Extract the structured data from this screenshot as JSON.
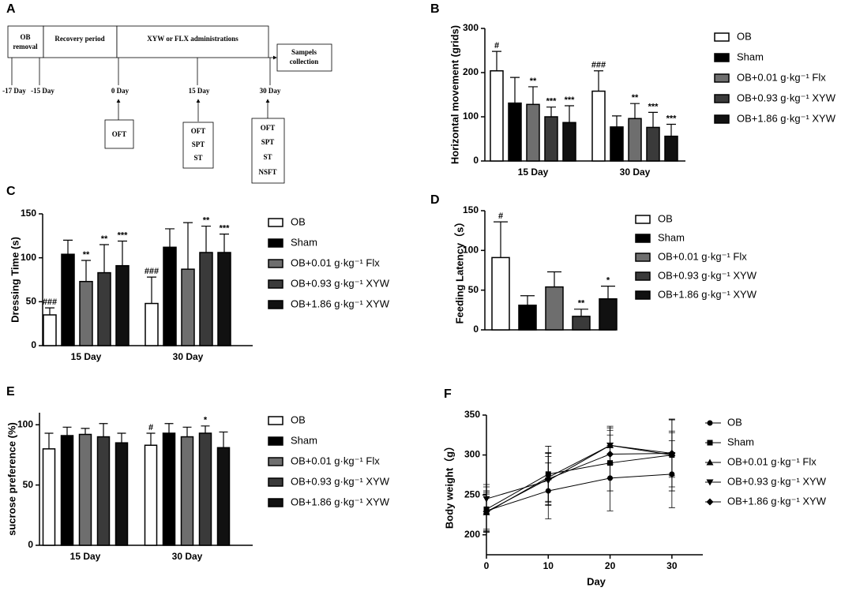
{
  "timeline": {
    "panel": "A",
    "phases": [
      [
        "OB",
        "removal"
      ],
      [
        "Recovery period"
      ],
      [
        "XYW or FLX administrations"
      ],
      [
        "Sampels",
        "collection"
      ]
    ],
    "days": [
      "-17 Day",
      "-15 Day",
      "0 Day",
      "15 Day",
      "30 Day"
    ],
    "tests": [
      [
        "OFT"
      ],
      [
        "OFT",
        "SPT",
        "ST"
      ],
      [
        "OFT",
        "SPT",
        "ST",
        "NSFT"
      ]
    ]
  },
  "chart_data": [
    {
      "panel": "B",
      "type": "bar",
      "y_label": "Horizontal movement (grids)",
      "categories": [
        "15 Day",
        "30 Day"
      ],
      "ylim": [
        0,
        300
      ],
      "yticks": [
        0,
        100,
        200,
        300
      ],
      "series": [
        {
          "name": "OB",
          "color": "#ffffff",
          "values": [
            204,
            158
          ],
          "errors": [
            44,
            46
          ],
          "annotations": [
            "#",
            "###"
          ]
        },
        {
          "name": "Sham",
          "color": "#000000",
          "values": [
            131,
            77
          ],
          "errors": [
            58,
            25
          ],
          "annotations": [
            null,
            null
          ]
        },
        {
          "name": "OB+0.01 g·kg⁻¹ Flx",
          "color": "#6e6e6e",
          "values": [
            128,
            96
          ],
          "errors": [
            40,
            34
          ],
          "annotations": [
            "**",
            "**"
          ]
        },
        {
          "name": "OB+0.93 g·kg⁻¹ XYW",
          "color": "#3a3a3a",
          "values": [
            100,
            76
          ],
          "errors": [
            22,
            34
          ],
          "annotations": [
            "***",
            "***"
          ]
        },
        {
          "name": "OB+1.86 g·kg⁻¹ XYW",
          "color": "#111111",
          "values": [
            87,
            56
          ],
          "errors": [
            38,
            27
          ],
          "annotations": [
            "***",
            "***"
          ]
        }
      ]
    },
    {
      "panel": "C",
      "type": "bar",
      "y_label": "Dressing Time (s)",
      "categories": [
        "15 Day",
        "30 Day"
      ],
      "ylim": [
        0,
        150
      ],
      "yticks": [
        0,
        50,
        100,
        150
      ],
      "series": [
        {
          "name": "OB",
          "color": "#ffffff",
          "values": [
            35,
            48
          ],
          "errors": [
            8,
            30
          ],
          "annotations": [
            "###",
            "###"
          ]
        },
        {
          "name": "Sham",
          "color": "#000000",
          "values": [
            104,
            112
          ],
          "errors": [
            16,
            21
          ],
          "annotations": [
            null,
            null
          ]
        },
        {
          "name": "OB+0.01 g·kg⁻¹ Flx",
          "color": "#6e6e6e",
          "values": [
            73,
            87
          ],
          "errors": [
            24,
            53
          ],
          "annotations": [
            "**",
            null
          ]
        },
        {
          "name": "OB+0.93 g·kg⁻¹ XYW",
          "color": "#3a3a3a",
          "values": [
            83,
            106
          ],
          "errors": [
            32,
            30
          ],
          "annotations": [
            "**",
            "**"
          ]
        },
        {
          "name": "OB+1.86 g·kg⁻¹ XYW",
          "color": "#111111",
          "values": [
            91,
            106
          ],
          "errors": [
            28,
            21
          ],
          "annotations": [
            "***",
            "***"
          ]
        }
      ]
    },
    {
      "panel": "D",
      "type": "bar",
      "y_label": "Feeding Latency（s）",
      "categories": [
        null
      ],
      "ylim": [
        0,
        150
      ],
      "yticks": [
        0,
        50,
        100,
        150
      ],
      "series": [
        {
          "name": "OB",
          "color": "#ffffff",
          "values": [
            91
          ],
          "errors": [
            45
          ],
          "annotations": [
            "#"
          ]
        },
        {
          "name": "Sham",
          "color": "#000000",
          "values": [
            31
          ],
          "errors": [
            12
          ],
          "annotations": [
            null
          ]
        },
        {
          "name": "OB+0.01 g·kg⁻¹ Flx",
          "color": "#6e6e6e",
          "values": [
            54
          ],
          "errors": [
            19
          ],
          "annotations": [
            null
          ]
        },
        {
          "name": "OB+0.93 g·kg⁻¹ XYW",
          "color": "#3a3a3a",
          "values": [
            17
          ],
          "errors": [
            9
          ],
          "annotations": [
            "**"
          ]
        },
        {
          "name": "OB+1.86 g·kg⁻¹ XYW",
          "color": "#111111",
          "values": [
            39
          ],
          "errors": [
            16
          ],
          "annotations": [
            "*"
          ]
        }
      ]
    },
    {
      "panel": "E",
      "type": "bar",
      "y_label": "sucrose preference (%)",
      "categories": [
        "15 Day",
        "30 Day"
      ],
      "ylim": [
        0,
        110
      ],
      "yticks": [
        0,
        50,
        100
      ],
      "series": [
        {
          "name": "OB",
          "color": "#ffffff",
          "values": [
            80,
            83
          ],
          "errors": [
            13,
            10
          ],
          "annotations": [
            null,
            "#"
          ]
        },
        {
          "name": "Sham",
          "color": "#000000",
          "values": [
            91,
            93
          ],
          "errors": [
            7,
            8
          ],
          "annotations": [
            null,
            null
          ]
        },
        {
          "name": "OB+0.01 g·kg⁻¹ Flx",
          "color": "#6e6e6e",
          "values": [
            92,
            90
          ],
          "errors": [
            5,
            8
          ],
          "annotations": [
            null,
            null
          ]
        },
        {
          "name": "OB+0.93 g·kg⁻¹ XYW",
          "color": "#3a3a3a",
          "values": [
            90,
            93
          ],
          "errors": [
            11,
            6
          ],
          "annotations": [
            null,
            "*"
          ]
        },
        {
          "name": "OB+1.86 g·kg⁻¹ XYW",
          "color": "#111111",
          "values": [
            85,
            81
          ],
          "errors": [
            8,
            13
          ],
          "annotations": [
            null,
            null
          ]
        }
      ]
    },
    {
      "panel": "F",
      "type": "line",
      "x_label": "Day",
      "y_label": "Body weight（g）",
      "x": [
        0,
        10,
        20,
        30
      ],
      "xlim": [
        0,
        35
      ],
      "xticks": [
        0,
        10,
        20,
        30
      ],
      "ylim": [
        175,
        350
      ],
      "yticks": [
        200,
        250,
        300,
        350
      ],
      "series": [
        {
          "name": "OB",
          "color": "#000000",
          "marker": "circle",
          "values": [
            230,
            255,
            271,
            276
          ],
          "errors": [
            25,
            35,
            41,
            42
          ]
        },
        {
          "name": "Sham",
          "color": "#000000",
          "marker": "square",
          "values": [
            232,
            276,
            290,
            300
          ],
          "errors": [
            28,
            35,
            35,
            28
          ]
        },
        {
          "name": "OB+0.01 g·kg⁻¹ Flx",
          "color": "#000000",
          "marker": "triangle-up",
          "values": [
            228,
            272,
            312,
            302
          ],
          "errors": [
            25,
            30,
            22,
            42
          ]
        },
        {
          "name": "OB+0.93 g·kg⁻¹ XYW",
          "color": "#000000",
          "marker": "triangle-down",
          "values": [
            245,
            268,
            312,
            300
          ],
          "errors": [
            18,
            30,
            24,
            45
          ]
        },
        {
          "name": "OB+1.86 g·kg⁻¹ XYW",
          "color": "#000000",
          "marker": "diamond",
          "values": [
            229,
            270,
            301,
            302
          ],
          "errors": [
            22,
            33,
            30,
            28
          ]
        }
      ]
    }
  ]
}
